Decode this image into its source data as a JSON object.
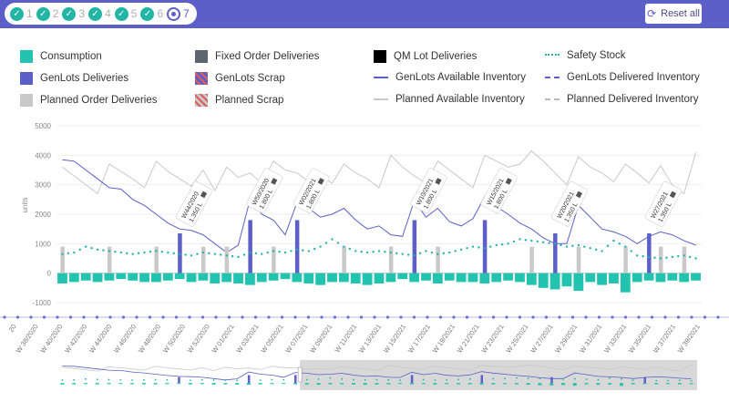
{
  "stepper": {
    "steps": [
      {
        "label": "1",
        "state": "done"
      },
      {
        "label": "2",
        "state": "done"
      },
      {
        "label": "3",
        "state": "done"
      },
      {
        "label": "4",
        "state": "done"
      },
      {
        "label": "5",
        "state": "done"
      },
      {
        "label": "6",
        "state": "done"
      },
      {
        "label": "7",
        "state": "active"
      }
    ],
    "done_icon": "check-icon"
  },
  "header": {
    "reset_label": "Reset all",
    "reset_icon": "refresh-icon",
    "bg": "#5b5fc7"
  },
  "legend": {
    "items": [
      {
        "label": "Consumption",
        "color": "#22c4b0",
        "kind": "box"
      },
      {
        "label": "Fixed Order Deliveries",
        "color": "#5c6670",
        "kind": "box"
      },
      {
        "label": "QM Lot Deliveries",
        "color": "#000000",
        "kind": "box"
      },
      {
        "label": "Safety Stock",
        "color": "#22b5a5",
        "kind": "dotted"
      },
      {
        "label": "GenLots Deliveries",
        "color": "#5b5fc7",
        "kind": "box"
      },
      {
        "label": "GenLots Scrap",
        "color": "#5b5fc7",
        "kind": "hatched-red"
      },
      {
        "label": "GenLots Available Inventory",
        "color": "#5b5fc7",
        "kind": "line"
      },
      {
        "label": "GenLots Delivered Inventory",
        "color": "#5b5fc7",
        "kind": "dashed"
      },
      {
        "label": "Planned Order Deliveries",
        "color": "#c9c9c9",
        "kind": "box"
      },
      {
        "label": "Planned Scrap",
        "color": "#c9c9c9",
        "kind": "hatched-red"
      },
      {
        "label": "Planned Available Inventory",
        "color": "#c9c9c9",
        "kind": "line"
      },
      {
        "label": "Planned Delivered Inventory",
        "color": "#c9c9c9",
        "kind": "dashed"
      }
    ]
  },
  "chart_data": {
    "type": "bar",
    "ylabel": "units",
    "ylim": [
      -1000,
      5000
    ],
    "yticks": [
      -1000,
      0,
      1000,
      2000,
      3000,
      4000,
      5000
    ],
    "x_ticks": [
      "W 38/2020",
      "W 40/2020",
      "W 42/2020",
      "W 44/2020",
      "W 46/2020",
      "W 48/2020",
      "W 50/2020",
      "W 52/2020",
      "W 01/2021",
      "W 03/2021",
      "W 05/2021",
      "W 07/2021",
      "W 09/2021",
      "W 11/2021",
      "W 13/2021",
      "W 15/2021",
      "W 17/2021",
      "W 19/2021",
      "W 21/2021",
      "W 23/2021",
      "W 25/2021",
      "W 27/2021",
      "W 29/2021",
      "W 31/2021",
      "W 33/2021",
      "W 35/2021",
      "W 37/2021",
      "W 39/2021"
    ],
    "x_ticks_partial": "20",
    "weeks": 55,
    "series": [
      {
        "name": "Consumption",
        "color": "#22c4b0",
        "values": [
          -350,
          -300,
          -250,
          -300,
          -250,
          -200,
          -250,
          -300,
          -300,
          -250,
          -200,
          -300,
          -250,
          -350,
          -300,
          -350,
          -400,
          -300,
          -250,
          -200,
          -300,
          -350,
          -400,
          -300,
          -300,
          -350,
          -400,
          -350,
          -300,
          -200,
          -300,
          -250,
          -350,
          -250,
          -300,
          -300,
          -350,
          -300,
          -250,
          -300,
          -400,
          -500,
          -550,
          -450,
          -600,
          -300,
          -400,
          -350,
          -650,
          -300,
          -250,
          -300,
          -250,
          -300,
          -250
        ]
      },
      {
        "name": "GenLots Deliveries",
        "color": "#5b5fc7",
        "values": [
          0,
          0,
          0,
          0,
          0,
          0,
          0,
          0,
          0,
          0,
          1350,
          0,
          0,
          0,
          0,
          0,
          1800,
          0,
          0,
          0,
          1800,
          0,
          0,
          0,
          0,
          0,
          0,
          0,
          0,
          0,
          1800,
          0,
          0,
          0,
          0,
          0,
          1800,
          0,
          0,
          0,
          0,
          0,
          1350,
          0,
          0,
          0,
          0,
          0,
          0,
          0,
          1350,
          0,
          0,
          0,
          0
        ]
      },
      {
        "name": "Planned Order Deliveries",
        "color": "#c9c9c9",
        "values": [
          900,
          0,
          0,
          0,
          900,
          0,
          0,
          0,
          900,
          0,
          0,
          0,
          900,
          0,
          900,
          0,
          0,
          0,
          900,
          0,
          0,
          0,
          0,
          0,
          900,
          0,
          0,
          0,
          900,
          0,
          0,
          0,
          900,
          0,
          0,
          0,
          900,
          0,
          0,
          0,
          900,
          0,
          0,
          0,
          900,
          0,
          0,
          0,
          900,
          0,
          0,
          900,
          0,
          900,
          0
        ]
      },
      {
        "name": "Safety Stock",
        "color": "#22b5a5",
        "values": [
          650,
          700,
          900,
          800,
          750,
          700,
          650,
          700,
          750,
          700,
          650,
          600,
          700,
          650,
          600,
          550,
          700,
          650,
          750,
          700,
          800,
          750,
          900,
          1150,
          900,
          750,
          700,
          750,
          700,
          650,
          600,
          750,
          650,
          700,
          800,
          900,
          850,
          950,
          1000,
          1150,
          1100,
          1050,
          1000,
          900,
          950,
          850,
          750,
          1100,
          900,
          600,
          550,
          500,
          550,
          600,
          500
        ]
      },
      {
        "name": "GenLots Available Inventory",
        "color": "#5b5fc7",
        "values": [
          3850,
          3800,
          3500,
          3200,
          2900,
          2850,
          2500,
          2300,
          2000,
          1700,
          1500,
          1450,
          1300,
          1000,
          700,
          950,
          2500,
          2000,
          1800,
          1300,
          2400,
          2200,
          1900,
          2000,
          2200,
          1800,
          1500,
          1600,
          1300,
          1250,
          2450,
          1900,
          2200,
          1750,
          1600,
          1850,
          2600,
          2250,
          2000,
          1700,
          1500,
          1200,
          1000,
          1000,
          2300,
          1900,
          1500,
          1400,
          1250,
          1000,
          1250,
          1400,
          1300,
          1100,
          950
        ]
      },
      {
        "name": "Planned Available Inventory",
        "color": "#c9c9c9",
        "values": [
          3600,
          3300,
          3000,
          2700,
          3700,
          3450,
          3200,
          2900,
          3800,
          3450,
          3200,
          2950,
          3500,
          2800,
          3600,
          3250,
          3400,
          3050,
          3800,
          3500,
          3400,
          3100,
          3300,
          3050,
          3700,
          3400,
          3200,
          2900,
          4000,
          3600,
          3300,
          3050,
          3800,
          3500,
          3200,
          2900,
          4000,
          3800,
          3600,
          3700,
          4150,
          3800,
          3400,
          3000,
          3950,
          3600,
          3400,
          3100,
          3700,
          3400,
          3050,
          3650,
          3000,
          2700,
          4100
        ]
      }
    ],
    "annotations": [
      {
        "week": "W44/2020",
        "qty": "1.350 L"
      },
      {
        "week": "W50/2020",
        "qty": "1.800 L"
      },
      {
        "week": "W02/2021",
        "qty": "1.800 L"
      },
      {
        "week": "W10/2021",
        "qty": "1.800 L"
      },
      {
        "week": "W15/2021",
        "qty": "1.800 L"
      },
      {
        "week": "W20/2021",
        "qty": "1.350 L"
      },
      {
        "week": "W27/2021",
        "qty": "1.350 L"
      }
    ],
    "annotation_icon": "edit-icon",
    "navigator": {
      "selection_start": 0.38,
      "selection_end": 1.0
    }
  }
}
